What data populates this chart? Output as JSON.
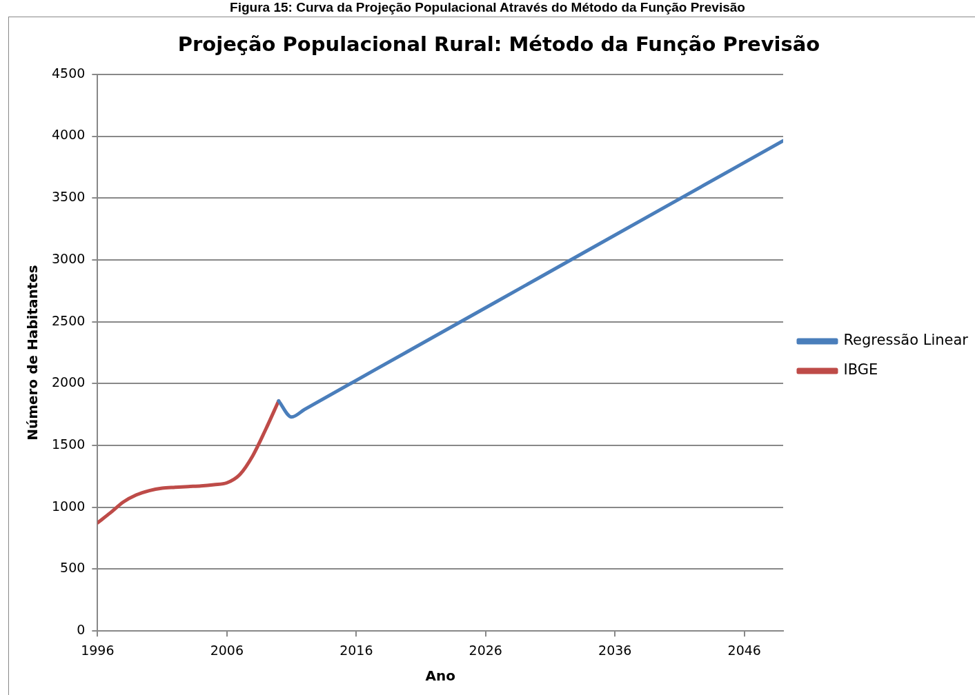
{
  "chart_data": {
    "type": "line",
    "title": "Projeção Populacional Rural: Método da Função Previsão",
    "xlabel": "Ano",
    "ylabel": "Número de Habitantes",
    "annotations": [
      "Figura 15: Curva da Projeção Populacional Através do Método da Função Previsão"
    ],
    "series": [
      {
        "name": "Regressão Linear",
        "color": "#4a7ebb",
        "x": [
          2010,
          2011,
          2012,
          2020,
          2030,
          2040,
          2049
        ],
        "values": [
          1860,
          1730,
          1791,
          2261,
          2848,
          3435,
          3963
        ]
      },
      {
        "name": "IBGE",
        "color": "#be4b48",
        "x": [
          1996,
          1997,
          1998,
          1999,
          2000,
          2001,
          2002,
          2003,
          2004,
          2005,
          2006,
          2007,
          2008,
          2009,
          2010
        ],
        "values": [
          875,
          956,
          1043,
          1100,
          1135,
          1155,
          1162,
          1168,
          1173,
          1183,
          1198,
          1265,
          1417,
          1630,
          1860
        ]
      }
    ],
    "xlim": [
      1996,
      2049
    ],
    "xticks": [
      1996,
      2006,
      2016,
      2026,
      2036,
      2046
    ],
    "ylim": [
      0,
      4500
    ],
    "yticks": [
      0,
      500,
      1000,
      1500,
      2000,
      2500,
      3000,
      3500,
      4000,
      4500
    ],
    "grid": "y",
    "legend": "right",
    "marker": "none",
    "line_style": "solid"
  }
}
